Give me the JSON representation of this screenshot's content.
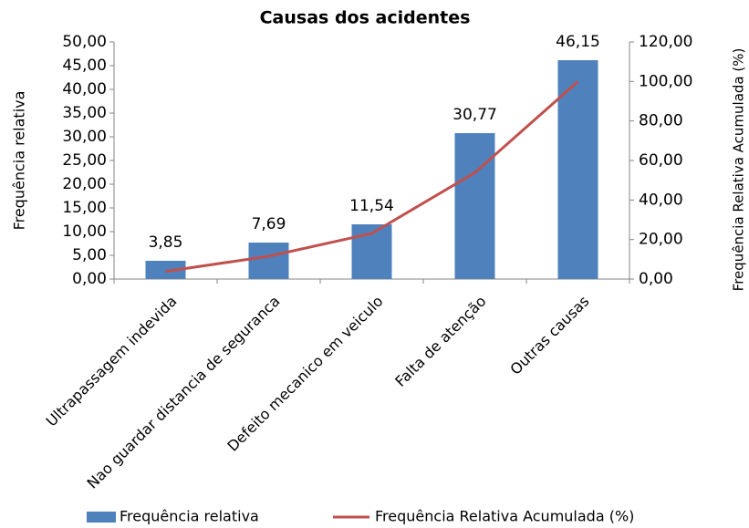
{
  "chart_data": {
    "type": "bar",
    "title": "Causas  dos acidentes",
    "y_label": "Frequência relativa",
    "y2_label": "Frequência Relativa Acumulada (%)",
    "categories": [
      "Ultrapassagem indevida",
      "Nao guardar distancia de seguranca",
      "Defeito mecanico em veiculo",
      "Falta de atenção",
      "Outras causas"
    ],
    "series": [
      {
        "name": "Frequência relativa",
        "color": "#4f81bd",
        "type": "bar",
        "values": [
          3.85,
          7.69,
          11.54,
          30.77,
          46.15
        ],
        "value_labels": [
          "3,85",
          "7,69",
          "11,54",
          "30,77",
          "46,15"
        ]
      },
      {
        "name": "Frequência Relativa Acumulada (%)",
        "color": "#c0504d",
        "type": "line",
        "axis": "y2",
        "values": [
          3.85,
          11.54,
          23.08,
          53.85,
          100
        ]
      }
    ],
    "ylim": [
      0,
      50
    ],
    "yticks": [
      {
        "value": 0,
        "label": "0,00"
      },
      {
        "value": 5,
        "label": "5,00"
      },
      {
        "value": 10,
        "label": "10,00"
      },
      {
        "value": 15,
        "label": "15,00"
      },
      {
        "value": 20,
        "label": "20,00"
      },
      {
        "value": 25,
        "label": "25,00"
      },
      {
        "value": 30,
        "label": "30,00"
      },
      {
        "value": 35,
        "label": "35,00"
      },
      {
        "value": 40,
        "label": "40,00"
      },
      {
        "value": 45,
        "label": "45,00"
      },
      {
        "value": 50,
        "label": "50,00"
      }
    ],
    "y2lim": [
      0,
      120
    ],
    "y2ticks": [
      {
        "value": 0,
        "label": "0,00"
      },
      {
        "value": 20,
        "label": "20,00"
      },
      {
        "value": 40,
        "label": "40,00"
      },
      {
        "value": 60,
        "label": "60,00"
      },
      {
        "value": 80,
        "label": "80,00"
      },
      {
        "value": 100,
        "label": "100,00"
      },
      {
        "value": 120,
        "label": "120,00"
      }
    ],
    "legend": "bottom"
  }
}
